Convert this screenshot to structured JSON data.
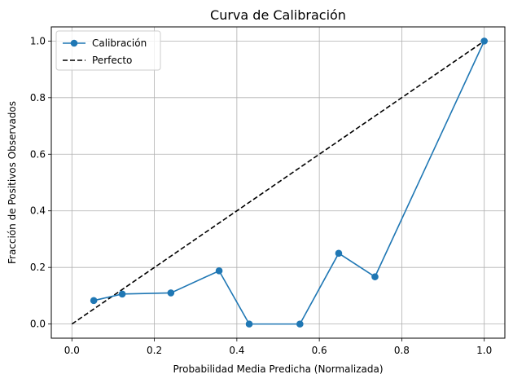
{
  "chart_data": {
    "type": "line",
    "title": "Curva de Calibración",
    "xlabel": "Probabilidad Media Predicha (Normalizada)",
    "ylabel": "Fracción de Positivos Observados",
    "xlim": [
      -0.05,
      1.05
    ],
    "ylim": [
      -0.05,
      1.05
    ],
    "xticks": [
      0.0,
      0.2,
      0.4,
      0.6,
      0.8,
      1.0
    ],
    "yticks": [
      0.0,
      0.2,
      0.4,
      0.6,
      0.8,
      1.0
    ],
    "xtick_labels": [
      "0.0",
      "0.2",
      "0.4",
      "0.6",
      "0.8",
      "1.0"
    ],
    "ytick_labels": [
      "0.0",
      "0.2",
      "0.4",
      "0.6",
      "0.8",
      "1.0"
    ],
    "grid": true,
    "legend_position": "top-left",
    "series": [
      {
        "name": "Calibración",
        "style": "solid-line-with-circle-markers",
        "color": "#1f77b4",
        "x": [
          0.053,
          0.122,
          0.24,
          0.357,
          0.43,
          0.553,
          0.647,
          0.735,
          1.0
        ],
        "y": [
          0.083,
          0.106,
          0.11,
          0.188,
          0.0,
          0.0,
          0.25,
          0.167,
          1.0
        ]
      },
      {
        "name": "Perfecto",
        "style": "dashed-line",
        "color": "#000000",
        "x": [
          0.0,
          1.0
        ],
        "y": [
          0.0,
          1.0
        ]
      }
    ]
  }
}
